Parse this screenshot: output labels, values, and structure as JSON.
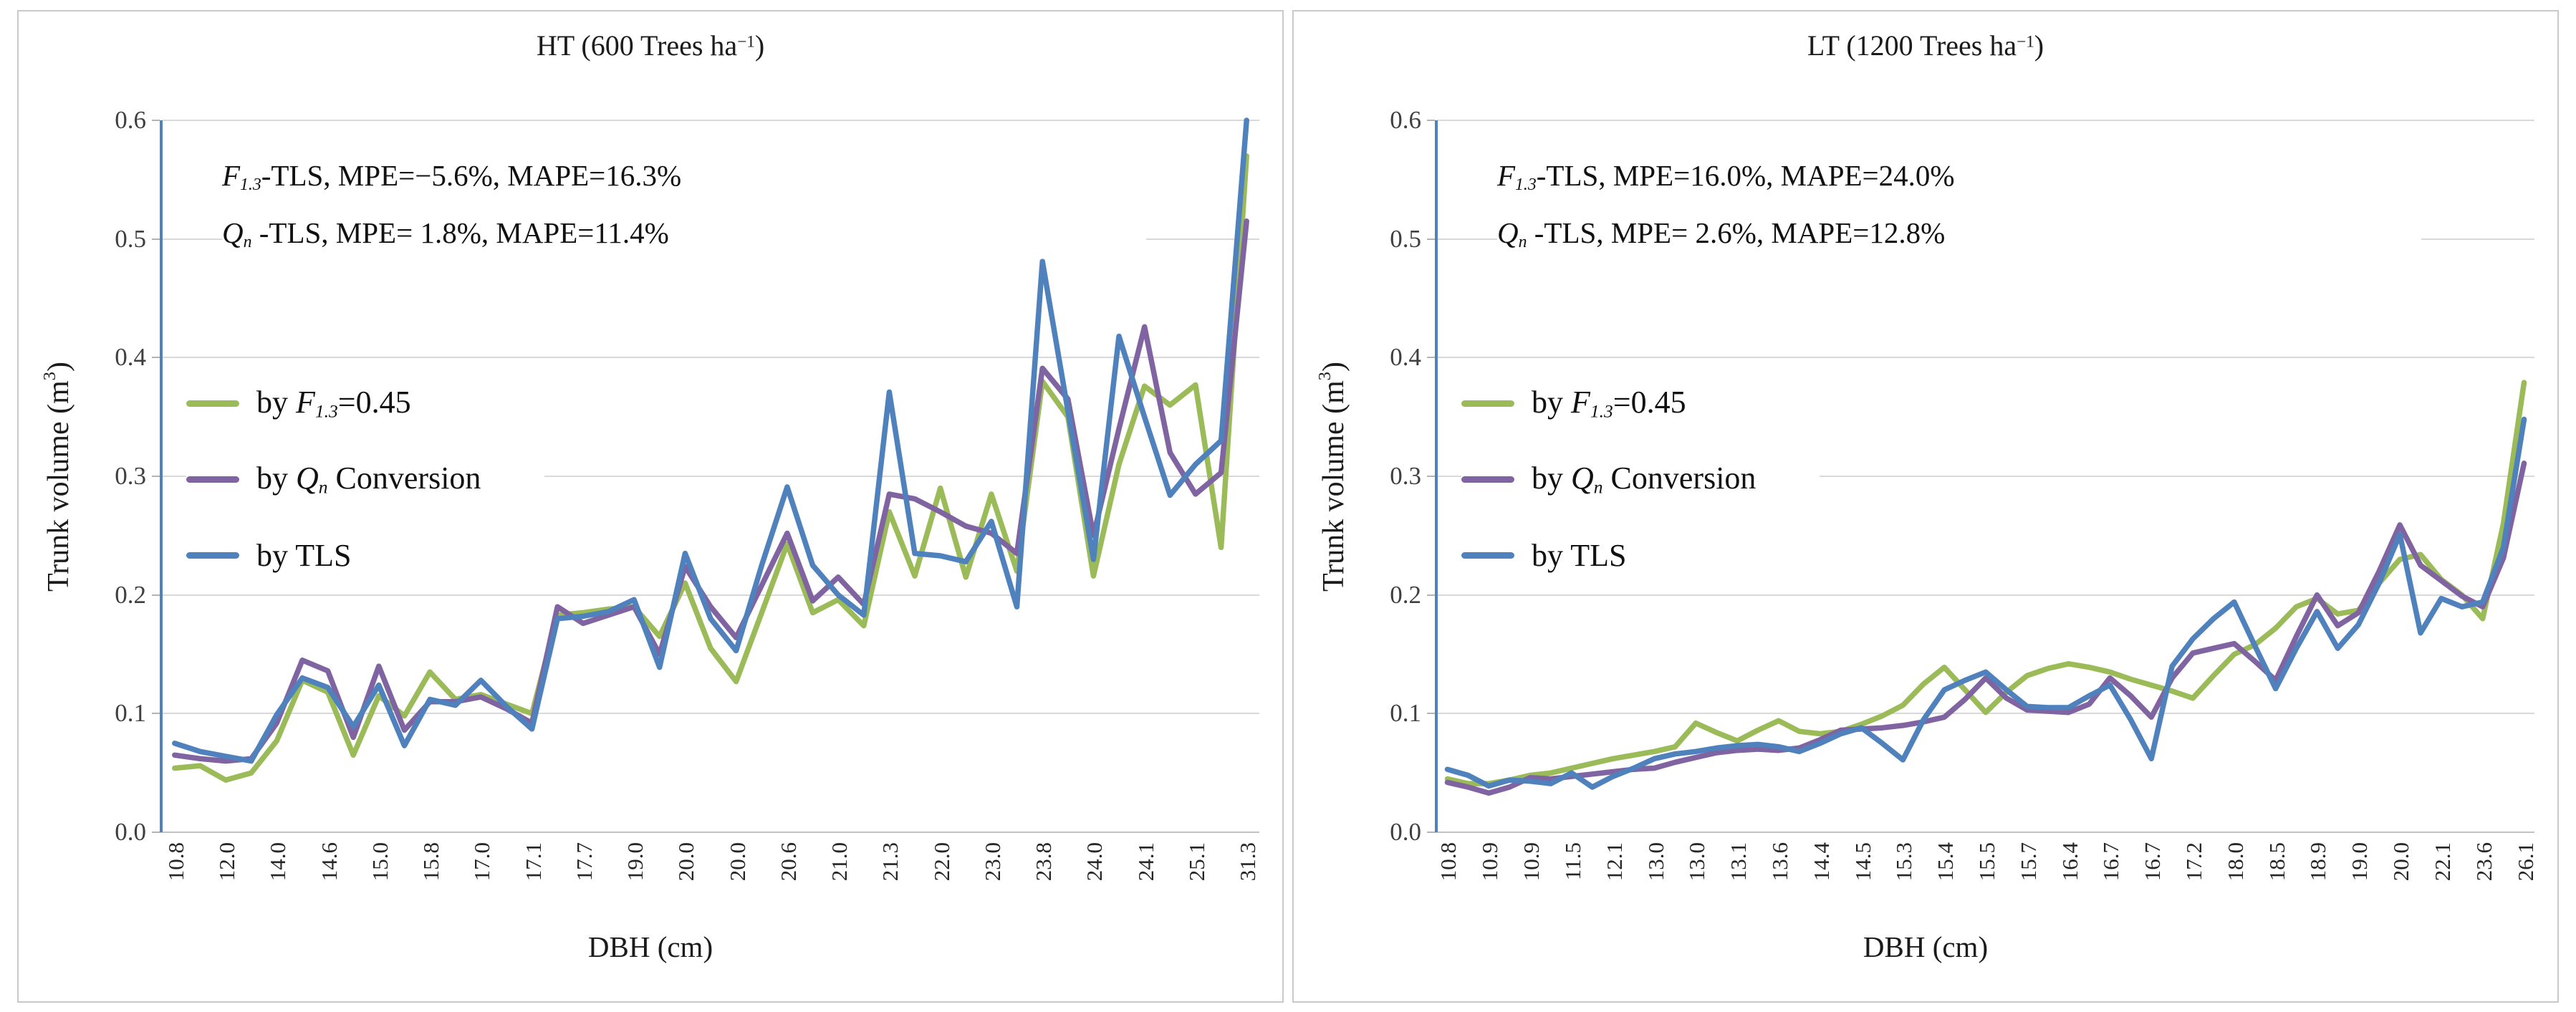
{
  "colors": {
    "series_f13_green": "#9bbb59",
    "series_qn_purple": "#8064a2",
    "series_tls_blue": "#4f81bd",
    "gridline": "#d9d9d9",
    "y_axis_line": "#4f81bd",
    "x_axis_line": "#c2c2c2",
    "panel_border": "#c9c9c9",
    "text": "#1b1b1b",
    "tick_text": "#3f3f3f"
  },
  "y_axis": {
    "title": "Trunk volume (m3)",
    "title_parts": [
      {
        "t": "Trunk volume (m"
      },
      {
        "t": "3",
        "sup": true
      },
      {
        "t": ")"
      }
    ],
    "ticks": [
      "0.0",
      "0.1",
      "0.2",
      "0.3",
      "0.4",
      "0.5",
      "0.6"
    ],
    "min": 0.0,
    "max": 0.6
  },
  "x_axis_title": "DBH (cm)",
  "legend_labels": [
    {
      "text": "by F1.3=0.45",
      "parts": [
        {
          "t": "by "
        },
        {
          "t": "F",
          "i": true
        },
        {
          "t": "1.3",
          "i": true,
          "sub": true
        },
        {
          "t": "=0.45"
        }
      ]
    },
    {
      "text": "by Qn Conversion",
      "parts": [
        {
          "t": "by "
        },
        {
          "t": "Q",
          "i": true
        },
        {
          "t": "n",
          "i": true,
          "sub": true
        },
        {
          "t": " Conversion"
        }
      ]
    },
    {
      "text": "by TLS",
      "parts": [
        {
          "t": "by TLS"
        }
      ]
    }
  ],
  "chart_data": [
    {
      "type": "line",
      "title": "HT (600 Trees ha-1)",
      "title_parts": [
        {
          "t": "HT (600 Trees ha"
        },
        {
          "t": "−1",
          "sup": true
        },
        {
          "t": ")"
        }
      ],
      "annotation_lines": [
        {
          "text": "F1.3-TLS, MPE=-5.6%, MAPE=16.3%",
          "parts": [
            {
              "t": "F",
              "i": true
            },
            {
              "t": "1.3",
              "i": true,
              "sub": true
            },
            {
              "t": "-TLS, MPE=−5.6%, MAPE=16.3%"
            }
          ]
        },
        {
          "text": "Qn -TLS, MPE= 1.8%, MAPE=11.4%",
          "parts": [
            {
              "t": "Q",
              "i": true
            },
            {
              "t": "n",
              "i": true,
              "sub": true
            },
            {
              "t": " -TLS, MPE= 1.8%, MAPE=11.4%"
            }
          ]
        }
      ],
      "xlabel": "DBH (cm)",
      "ylabel": "Trunk volume (m3)",
      "ylim": [
        0.0,
        0.6
      ],
      "grid": true,
      "legend_position": "inside-left",
      "categories": [
        "10.8",
        "",
        "12.0",
        "",
        "14.0",
        "",
        "14.6",
        "",
        "15.0",
        "",
        "15.8",
        "",
        "17.0",
        "",
        "17.1",
        "",
        "17.7",
        "",
        "19.0",
        "",
        "20.0",
        "",
        "20.0",
        "",
        "20.6",
        "",
        "21.0",
        "",
        "21.3",
        "",
        "22.0",
        "",
        "23.0",
        "",
        "23.8",
        "",
        "24.0",
        "",
        "24.1",
        "",
        "25.1",
        "",
        "31.3"
      ],
      "series": [
        {
          "name": "by F1.3=0.45",
          "color": "#9bbb59",
          "values": [
            0.054,
            0.056,
            0.044,
            0.05,
            0.077,
            0.128,
            0.118,
            0.065,
            0.115,
            0.098,
            0.135,
            0.112,
            0.116,
            0.108,
            0.1,
            0.183,
            0.185,
            0.188,
            0.19,
            0.165,
            0.21,
            0.155,
            0.127,
            0.185,
            0.243,
            0.185,
            0.196,
            0.174,
            0.27,
            0.216,
            0.29,
            0.215,
            0.285,
            0.22,
            0.38,
            0.35,
            0.216,
            0.31,
            0.376,
            0.36,
            0.377,
            0.24,
            0.57
          ]
        },
        {
          "name": "by Qn Conversion",
          "color": "#8064a2",
          "values": [
            0.065,
            0.062,
            0.06,
            0.062,
            0.092,
            0.145,
            0.136,
            0.08,
            0.14,
            0.086,
            0.11,
            0.11,
            0.114,
            0.104,
            0.092,
            0.19,
            0.176,
            0.183,
            0.19,
            0.15,
            0.224,
            0.19,
            0.164,
            0.208,
            0.252,
            0.195,
            0.215,
            0.192,
            0.285,
            0.281,
            0.27,
            0.258,
            0.252,
            0.235,
            0.391,
            0.365,
            0.25,
            0.34,
            0.426,
            0.32,
            0.285,
            0.303,
            0.515
          ]
        },
        {
          "name": "by TLS",
          "color": "#4f81bd",
          "values": [
            0.075,
            0.068,
            0.064,
            0.06,
            0.099,
            0.13,
            0.122,
            0.089,
            0.124,
            0.073,
            0.112,
            0.107,
            0.128,
            0.106,
            0.087,
            0.18,
            0.182,
            0.186,
            0.196,
            0.139,
            0.235,
            0.18,
            0.153,
            0.225,
            0.291,
            0.225,
            0.2,
            0.183,
            0.371,
            0.235,
            0.233,
            0.228,
            0.262,
            0.19,
            0.481,
            0.355,
            0.23,
            0.418,
            0.35,
            0.284,
            0.31,
            0.33,
            0.6
          ]
        }
      ]
    },
    {
      "type": "line",
      "title": "LT (1200 Trees ha-1)",
      "title_parts": [
        {
          "t": "LT (1200 Trees ha"
        },
        {
          "t": "−1",
          "sup": true
        },
        {
          "t": ")"
        }
      ],
      "annotation_lines": [
        {
          "text": "F1.3-TLS, MPE=16.0%, MAPE=24.0%",
          "parts": [
            {
              "t": "F",
              "i": true
            },
            {
              "t": "1.3",
              "i": true,
              "sub": true
            },
            {
              "t": "-TLS, MPE=16.0%, MAPE=24.0%"
            }
          ]
        },
        {
          "text": "Qn -TLS, MPE= 2.6%, MAPE=12.8%",
          "parts": [
            {
              "t": "Q",
              "i": true
            },
            {
              "t": "n",
              "i": true,
              "sub": true
            },
            {
              "t": " -TLS, MPE= 2.6%, MAPE=12.8%"
            }
          ]
        }
      ],
      "xlabel": "DBH (cm)",
      "ylabel": "Trunk volume (m3)",
      "ylim": [
        0.0,
        0.6
      ],
      "grid": true,
      "legend_position": "inside-left",
      "categories": [
        "10.8",
        "",
        "10.9",
        "",
        "10.9",
        "",
        "11.5",
        "",
        "12.1",
        "",
        "13.0",
        "",
        "13.0",
        "",
        "13.1",
        "",
        "13.6",
        "",
        "14.4",
        "",
        "14.5",
        "",
        "15.3",
        "",
        "15.4",
        "",
        "15.5",
        "",
        "15.7",
        "",
        "16.4",
        "",
        "16.7",
        "",
        "16.7",
        "",
        "17.2",
        "",
        "18.0",
        "",
        "18.5",
        "",
        "18.9",
        "",
        "19.0",
        "",
        "20.0",
        "",
        "22.1",
        "",
        "23.6",
        "",
        "26.1"
      ],
      "series": [
        {
          "name": "by F1.3=0.45",
          "color": "#9bbb59",
          "values": [
            0.045,
            0.041,
            0.041,
            0.044,
            0.048,
            0.05,
            0.054,
            0.058,
            0.062,
            0.065,
            0.068,
            0.072,
            0.092,
            0.084,
            0.077,
            0.086,
            0.094,
            0.085,
            0.083,
            0.085,
            0.091,
            0.098,
            0.107,
            0.125,
            0.139,
            0.12,
            0.101,
            0.118,
            0.132,
            0.138,
            0.142,
            0.139,
            0.135,
            0.129,
            0.124,
            0.119,
            0.113,
            0.132,
            0.15,
            0.158,
            0.172,
            0.19,
            0.197,
            0.184,
            0.187,
            0.21,
            0.23,
            0.234,
            0.213,
            0.2,
            0.18,
            0.26,
            0.379
          ]
        },
        {
          "name": "by Qn Conversion",
          "color": "#8064a2",
          "values": [
            0.042,
            0.038,
            0.033,
            0.038,
            0.046,
            0.045,
            0.047,
            0.049,
            0.051,
            0.053,
            0.054,
            0.059,
            0.063,
            0.067,
            0.069,
            0.07,
            0.069,
            0.071,
            0.078,
            0.086,
            0.087,
            0.088,
            0.09,
            0.093,
            0.097,
            0.112,
            0.13,
            0.113,
            0.103,
            0.102,
            0.101,
            0.108,
            0.13,
            0.115,
            0.097,
            0.13,
            0.151,
            0.155,
            0.159,
            0.144,
            0.128,
            0.165,
            0.2,
            0.174,
            0.185,
            0.22,
            0.259,
            0.225,
            0.212,
            0.199,
            0.19,
            0.231,
            0.311
          ]
        },
        {
          "name": "by TLS",
          "color": "#4f81bd",
          "values": [
            0.053,
            0.048,
            0.039,
            0.044,
            0.043,
            0.041,
            0.05,
            0.038,
            0.047,
            0.054,
            0.062,
            0.066,
            0.068,
            0.071,
            0.073,
            0.074,
            0.072,
            0.068,
            0.075,
            0.083,
            0.088,
            0.075,
            0.061,
            0.095,
            0.12,
            0.128,
            0.135,
            0.12,
            0.106,
            0.105,
            0.105,
            0.115,
            0.124,
            0.095,
            0.062,
            0.14,
            0.163,
            0.18,
            0.194,
            0.157,
            0.121,
            0.155,
            0.186,
            0.155,
            0.175,
            0.21,
            0.251,
            0.168,
            0.197,
            0.19,
            0.194,
            0.24,
            0.348
          ]
        }
      ]
    }
  ]
}
